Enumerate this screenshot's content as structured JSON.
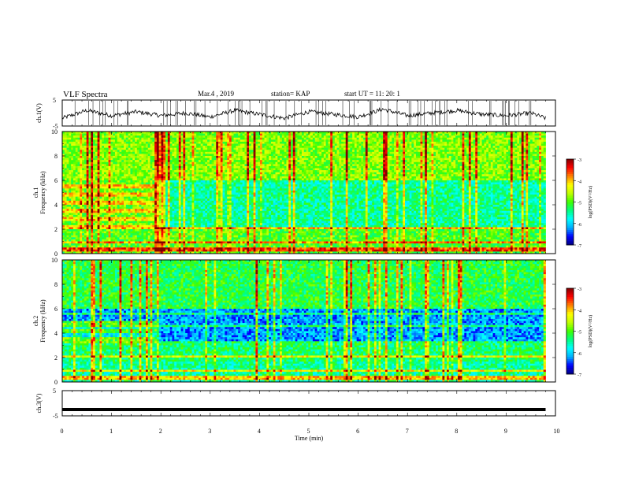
{
  "header": {
    "title": "VLF Spectra",
    "date": "Mar.4 , 2019",
    "station": "station= KAP",
    "start": "start UT =   11: 20: 1"
  },
  "chart_data": [
    {
      "type": "line",
      "panel": "ch1-waveform",
      "ylabel": "ch.1(V)",
      "ylim": [
        -5,
        5
      ],
      "yticks": [
        "5",
        "-5"
      ],
      "xlim": [
        0,
        10
      ],
      "x": [
        0,
        0.5,
        1,
        1.5,
        2,
        2.5,
        3,
        3.5,
        4,
        4.5,
        5,
        5.5,
        6,
        6.5,
        7,
        7.5,
        8,
        8.5,
        9,
        9.5,
        9.8
      ],
      "values": [
        -2,
        1,
        -1,
        0.5,
        -1,
        0,
        -1.5,
        1,
        -0.5,
        -2,
        0.5,
        -0.5,
        -1.5,
        1.5,
        -1,
        0,
        1,
        -0.5,
        -1,
        0,
        -2
      ],
      "grid": false
    },
    {
      "type": "heatmap",
      "panel": "ch1-spectrogram",
      "ylabel": "ch.1\nFrequency (kHz)",
      "yticks": [
        "0",
        "2",
        "4",
        "6",
        "8",
        "10"
      ],
      "ylim": [
        0,
        10
      ],
      "xlim": [
        0,
        10
      ],
      "colorbar": {
        "label": "log(PSD)(V²/Hz)",
        "ticks": [
          "-3",
          "-4",
          "-5",
          "-6",
          "-7"
        ],
        "range": [
          -7,
          -3
        ]
      }
    },
    {
      "type": "heatmap",
      "panel": "ch2-spectrogram",
      "ylabel": "ch.2\nFrequency (kHz)",
      "yticks": [
        "0",
        "2",
        "4",
        "6",
        "8",
        "10"
      ],
      "ylim": [
        0,
        10
      ],
      "xlim": [
        0,
        10
      ],
      "colorbar": {
        "label": "log(PSD)(V²/Hz)",
        "ticks": [
          "-3",
          "-4",
          "-5",
          "-6",
          "-7"
        ],
        "range": [
          -7,
          -3
        ]
      }
    },
    {
      "type": "line",
      "panel": "ch3-waveform",
      "ylabel": "ch.3(V)",
      "ylim": [
        -5,
        5
      ],
      "yticks": [
        "5",
        "-5"
      ],
      "xlim": [
        0,
        10
      ],
      "x": [
        0,
        9.8
      ],
      "values": [
        -2.5,
        -2.5
      ],
      "xlabel": "Time (min)",
      "xticks": [
        "0",
        "1",
        "2",
        "3",
        "4",
        "5",
        "6",
        "7",
        "8",
        "9",
        "10"
      ]
    }
  ],
  "colors": {
    "colormap": [
      "#00004d",
      "#0000ff",
      "#00a0ff",
      "#00ffff",
      "#00ff80",
      "#80ff00",
      "#ffff00",
      "#ff8000",
      "#ff0000",
      "#ff80ff",
      "#ffffff"
    ],
    "line": "#000000"
  }
}
